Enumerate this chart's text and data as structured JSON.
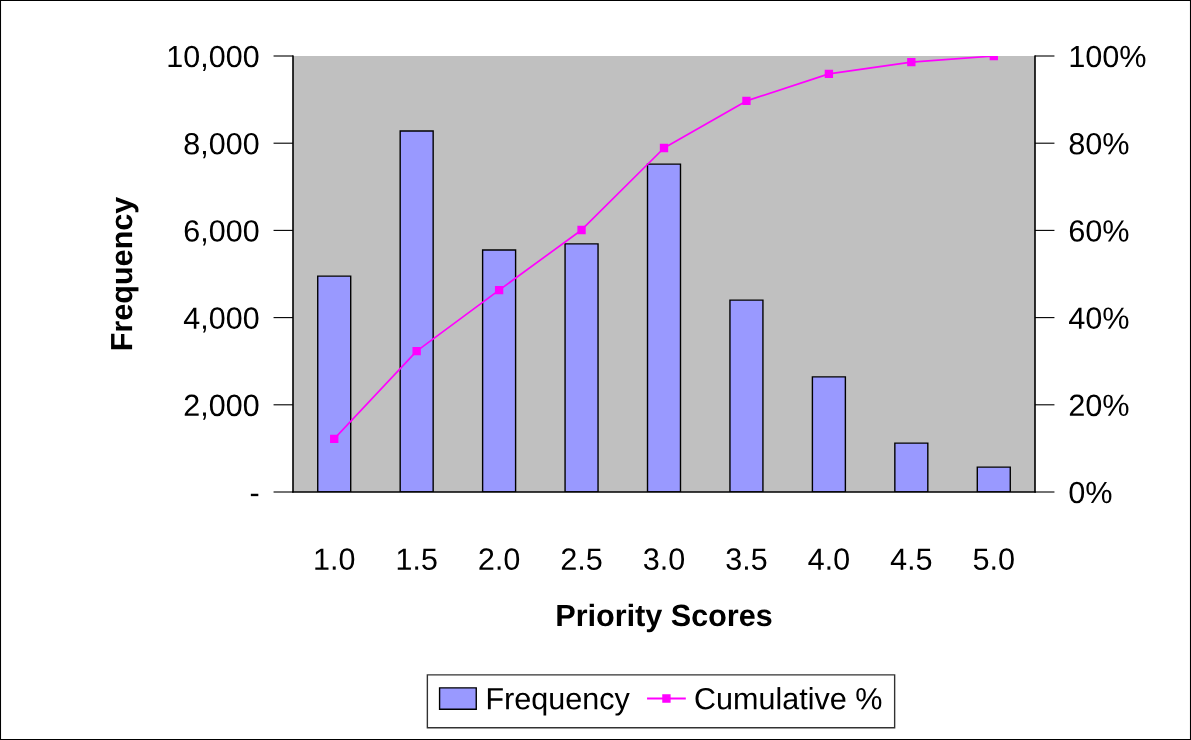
{
  "chart_data": {
    "type": "bar",
    "xlabel": "Priority Scores",
    "ylabel": "Frequency",
    "categories": [
      "1.0",
      "1.5",
      "2.0",
      "2.5",
      "3.0",
      "3.5",
      "4.0",
      "4.5",
      "5.0"
    ],
    "series": [
      {
        "name": "Frequency",
        "color": "#9999ff",
        "values": [
          4950,
          8280,
          5550,
          5690,
          7520,
          4400,
          2640,
          1120,
          570
        ]
      },
      {
        "name": "Cumulative %",
        "type": "line",
        "axis": "y2",
        "color": "#ff00ff",
        "marker": "square",
        "values": [
          12.2,
          32.3,
          46.3,
          60.1,
          78.9,
          89.7,
          95.9,
          98.6,
          100
        ]
      }
    ],
    "ylim": [
      0,
      10000
    ],
    "yticks": [
      {
        "value": 0,
        "label": "-"
      },
      {
        "value": 2000,
        "label": "2,000"
      },
      {
        "value": 4000,
        "label": "4,000"
      },
      {
        "value": 6000,
        "label": "6,000"
      },
      {
        "value": 8000,
        "label": "8,000"
      },
      {
        "value": 10000,
        "label": "10,000"
      }
    ],
    "y2lim": [
      0,
      100
    ],
    "y2ticks": [
      {
        "value": 0,
        "label": "0%"
      },
      {
        "value": 20,
        "label": "20%"
      },
      {
        "value": 40,
        "label": "40%"
      },
      {
        "value": 60,
        "label": "60%"
      },
      {
        "value": 80,
        "label": "80%"
      },
      {
        "value": 100,
        "label": "100%"
      }
    ],
    "legend": "bottom",
    "grid": false
  }
}
